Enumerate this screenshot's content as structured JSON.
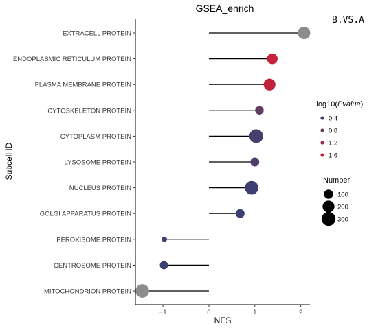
{
  "chart_data": {
    "type": "lollipop",
    "title": "GSEA_enrich",
    "corner_label": "B.VS.A",
    "xlabel": "NES",
    "ylabel": "Subcell ID",
    "xlim": [
      -1.6,
      2.2
    ],
    "xticks": [
      -1,
      0,
      1,
      2
    ],
    "xtick_labels": [
      "−1",
      "0",
      "1",
      "2"
    ],
    "categories": [
      "EXTRACELL PROTEIN",
      "ENDOPLASMIC RETICULUM PROTEIN",
      "PLASMA MEMBRANE PROTEIN",
      "CYTOSKELETON PROTEIN",
      "CYTOPLASM PROTEIN",
      "LYSOSOME PROTEIN",
      "NUCLEUS PROTEIN",
      "GOLGI APPARATUS PROTEIN",
      "PEROXISOME PROTEIN",
      "CENTROSOME PROTEIN",
      "MITOCHONDRION PROTEIN"
    ],
    "values": [
      2.07,
      1.38,
      1.32,
      1.1,
      1.03,
      1.0,
      0.93,
      0.68,
      -0.97,
      -0.98,
      -1.45
    ],
    "color_values": [
      null,
      1.65,
      1.55,
      0.7,
      0.5,
      0.55,
      0.4,
      0.2,
      0.3,
      0.35,
      null
    ],
    "size_values": [
      230,
      150,
      200,
      80,
      290,
      90,
      280,
      90,
      15,
      70,
      280
    ],
    "na_color": "#8c8c8c",
    "color_legend": {
      "title_prefix": "−log10(",
      "title_italic": "Pvalue",
      "title_suffix": ")",
      "labels": [
        "0.4",
        "0.8",
        "1.2",
        "1.6"
      ],
      "values": [
        0.4,
        0.8,
        1.2,
        1.6
      ],
      "colors": [
        "#3d3f72",
        "#6b3a5c",
        "#9a2f45",
        "#c8213a"
      ]
    },
    "size_legend": {
      "title": "Number",
      "labels": [
        "100",
        "200",
        "300"
      ],
      "values": [
        100,
        200,
        300
      ]
    },
    "grid": false
  }
}
